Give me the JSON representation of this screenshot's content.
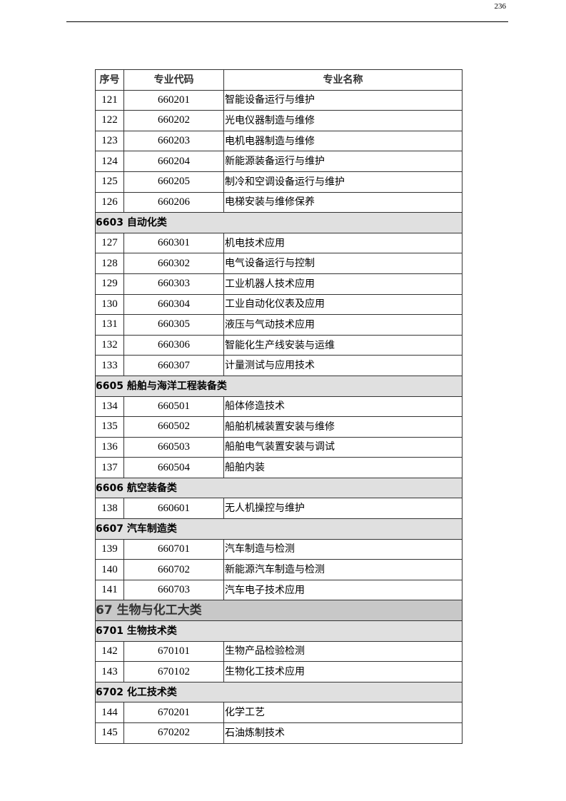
{
  "page_number": "236",
  "table": {
    "headers": [
      "序号",
      "专业代码",
      "专业名称"
    ],
    "rows": [
      {
        "type": "row",
        "no": "121",
        "code": "660201",
        "name": "智能设备运行与维护"
      },
      {
        "type": "row",
        "no": "122",
        "code": "660202",
        "name": "光电仪器制造与维修"
      },
      {
        "type": "row",
        "no": "123",
        "code": "660203",
        "name": "电机电器制造与维修"
      },
      {
        "type": "row",
        "no": "124",
        "code": "660204",
        "name": "新能源装备运行与维护"
      },
      {
        "type": "row",
        "no": "125",
        "code": "660205",
        "name": "制冷和空调设备运行与维护"
      },
      {
        "type": "row",
        "no": "126",
        "code": "660206",
        "name": "电梯安装与维修保养"
      },
      {
        "type": "group",
        "title": "6603 自动化类"
      },
      {
        "type": "row",
        "no": "127",
        "code": "660301",
        "name": "机电技术应用"
      },
      {
        "type": "row",
        "no": "128",
        "code": "660302",
        "name": "电气设备运行与控制"
      },
      {
        "type": "row",
        "no": "129",
        "code": "660303",
        "name": "工业机器人技术应用"
      },
      {
        "type": "row",
        "no": "130",
        "code": "660304",
        "name": "工业自动化仪表及应用"
      },
      {
        "type": "row",
        "no": "131",
        "code": "660305",
        "name": "液压与气动技术应用"
      },
      {
        "type": "row",
        "no": "132",
        "code": "660306",
        "name": "智能化生产线安装与运维"
      },
      {
        "type": "row",
        "no": "133",
        "code": "660307",
        "name": "计量测试与应用技术"
      },
      {
        "type": "group",
        "title": "6605 船舶与海洋工程装备类"
      },
      {
        "type": "row",
        "no": "134",
        "code": "660501",
        "name": "船体修造技术"
      },
      {
        "type": "row",
        "no": "135",
        "code": "660502",
        "name": "船舶机械装置安装与维修"
      },
      {
        "type": "row",
        "no": "136",
        "code": "660503",
        "name": "船舶电气装置安装与调试"
      },
      {
        "type": "row",
        "no": "137",
        "code": "660504",
        "name": "船舶内装"
      },
      {
        "type": "group",
        "title": "6606 航空装备类"
      },
      {
        "type": "row",
        "no": "138",
        "code": "660601",
        "name": "无人机操控与维护"
      },
      {
        "type": "group",
        "title": "6607 汽车制造类"
      },
      {
        "type": "row",
        "no": "139",
        "code": "660701",
        "name": "汽车制造与检测"
      },
      {
        "type": "row",
        "no": "140",
        "code": "660702",
        "name": "新能源汽车制造与检测"
      },
      {
        "type": "row",
        "no": "141",
        "code": "660703",
        "name": "汽车电子技术应用"
      },
      {
        "type": "major",
        "title": "67 生物与化工大类"
      },
      {
        "type": "group",
        "title": "6701 生物技术类"
      },
      {
        "type": "row",
        "no": "142",
        "code": "670101",
        "name": "生物产品检验检测"
      },
      {
        "type": "row",
        "no": "143",
        "code": "670102",
        "name": "生物化工技术应用"
      },
      {
        "type": "group",
        "title": "6702 化工技术类"
      },
      {
        "type": "row",
        "no": "144",
        "code": "670201",
        "name": "化学工艺"
      },
      {
        "type": "row",
        "no": "145",
        "code": "670202",
        "name": "石油炼制技术"
      }
    ]
  }
}
